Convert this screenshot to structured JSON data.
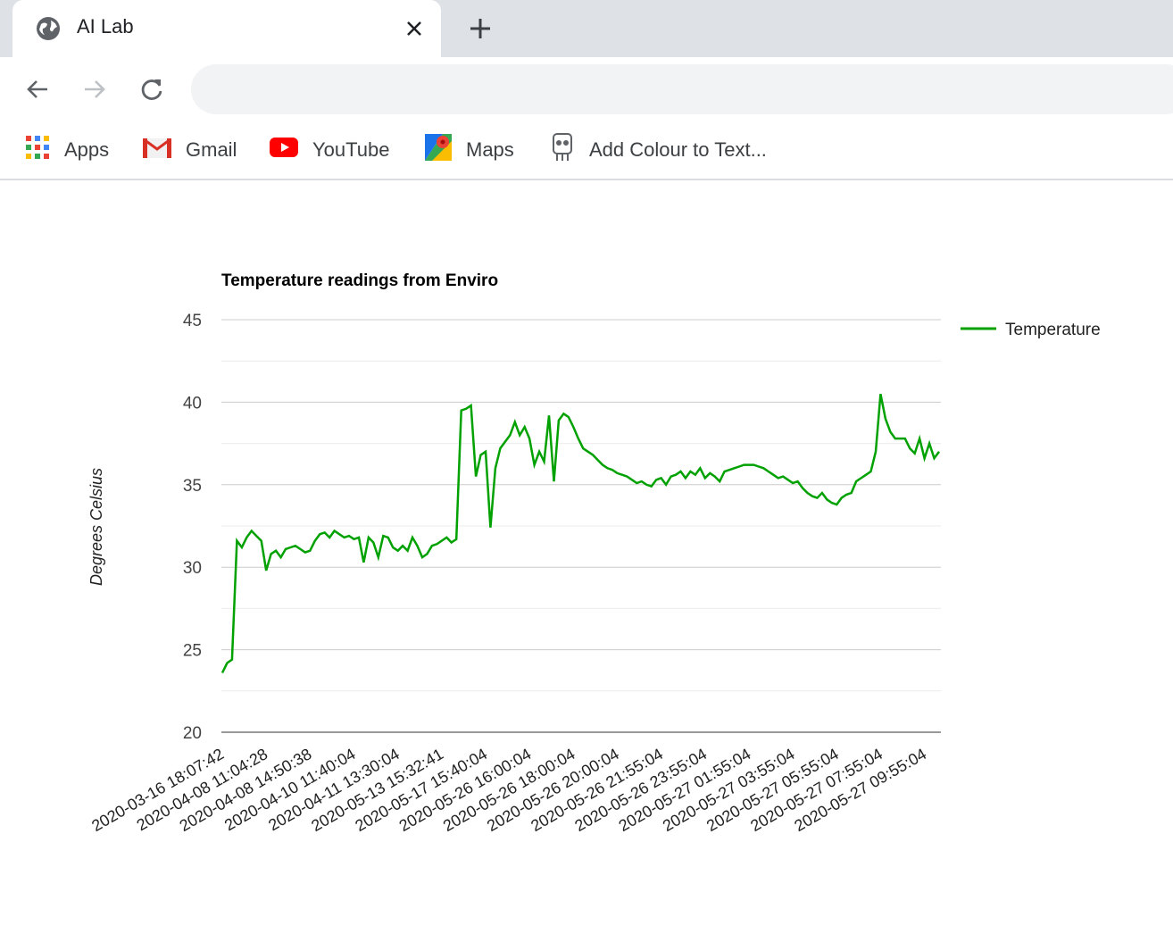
{
  "browser": {
    "tab_title": "AI Lab",
    "address": ""
  },
  "bookmarks": [
    {
      "label": "Apps",
      "icon": "apps-grid-icon"
    },
    {
      "label": "Gmail",
      "icon": "gmail-icon"
    },
    {
      "label": "YouTube",
      "icon": "youtube-icon"
    },
    {
      "label": "Maps",
      "icon": "maps-icon"
    },
    {
      "label": "Add Colour to Text...",
      "icon": "page-favicon-icon"
    }
  ],
  "chart_data": {
    "type": "line",
    "title": "Temperature readings from Enviro",
    "ylabel": "Degrees Celsius",
    "xlabel": "",
    "ylim": [
      20,
      45
    ],
    "yticks": [
      20,
      25,
      30,
      35,
      40,
      45
    ],
    "grid": true,
    "legend_position": "right",
    "series": [
      {
        "name": "Temperature",
        "color": "#00a100",
        "values": [
          23.6,
          24.2,
          24.4,
          31.6,
          31.2,
          31.8,
          32.2,
          31.9,
          31.6,
          29.8,
          30.8,
          31.0,
          30.6,
          31.1,
          31.2,
          31.3,
          31.1,
          30.9,
          31.0,
          31.6,
          32.0,
          32.1,
          31.8,
          32.2,
          32.0,
          31.8,
          31.9,
          31.7,
          31.8,
          30.3,
          31.8,
          31.5,
          30.6,
          31.9,
          31.8,
          31.2,
          31.0,
          31.3,
          31.0,
          31.8,
          31.3,
          30.6,
          30.8,
          31.3,
          31.4,
          31.6,
          31.8,
          31.5,
          31.7,
          39.5,
          39.6,
          39.8,
          35.5,
          36.8,
          37.0,
          32.4,
          36.0,
          37.2,
          37.6,
          38.0,
          38.8,
          38.0,
          38.5,
          37.8,
          36.2,
          37.0,
          36.4,
          39.2,
          35.2,
          38.9,
          39.3,
          39.1,
          38.5,
          37.8,
          37.2,
          37.0,
          36.8,
          36.5,
          36.2,
          36.0,
          35.9,
          35.7,
          35.6,
          35.5,
          35.3,
          35.1,
          35.2,
          35.0,
          34.9,
          35.3,
          35.4,
          35.0,
          35.5,
          35.6,
          35.8,
          35.4,
          35.8,
          35.6,
          36.0,
          35.4,
          35.7,
          35.5,
          35.2,
          35.8,
          35.9,
          36.0,
          36.1,
          36.2,
          36.2,
          36.2,
          36.1,
          36.0,
          35.8,
          35.6,
          35.4,
          35.5,
          35.3,
          35.1,
          35.2,
          34.8,
          34.5,
          34.3,
          34.2,
          34.5,
          34.1,
          33.9,
          33.8,
          34.2,
          34.4,
          34.5,
          35.2,
          35.4,
          35.6,
          35.8,
          37.0,
          40.5,
          39.0,
          38.2,
          37.8,
          37.8,
          37.8,
          37.2,
          36.9,
          37.8,
          36.6,
          37.5,
          36.6,
          37.0
        ]
      }
    ],
    "x_tick_labels": [
      "2020-03-16 18:07:42",
      "2020-04-08 11:04:28",
      "2020-04-08 14:50:38",
      "2020-04-10 11:40:04",
      "2020-04-11 13:30:04",
      "2020-05-13 15:32:41",
      "2020-05-17 15:40:04",
      "2020-05-26 16:00:04",
      "2020-05-26 18:00:04",
      "2020-05-26 20:00:04",
      "2020-05-26 21:55:04",
      "2020-05-26 23:55:04",
      "2020-05-27 01:55:04",
      "2020-05-27 03:55:04",
      "2020-05-27 05:55:04",
      "2020-05-27 07:55:04",
      "2020-05-27 09:55:04"
    ]
  }
}
